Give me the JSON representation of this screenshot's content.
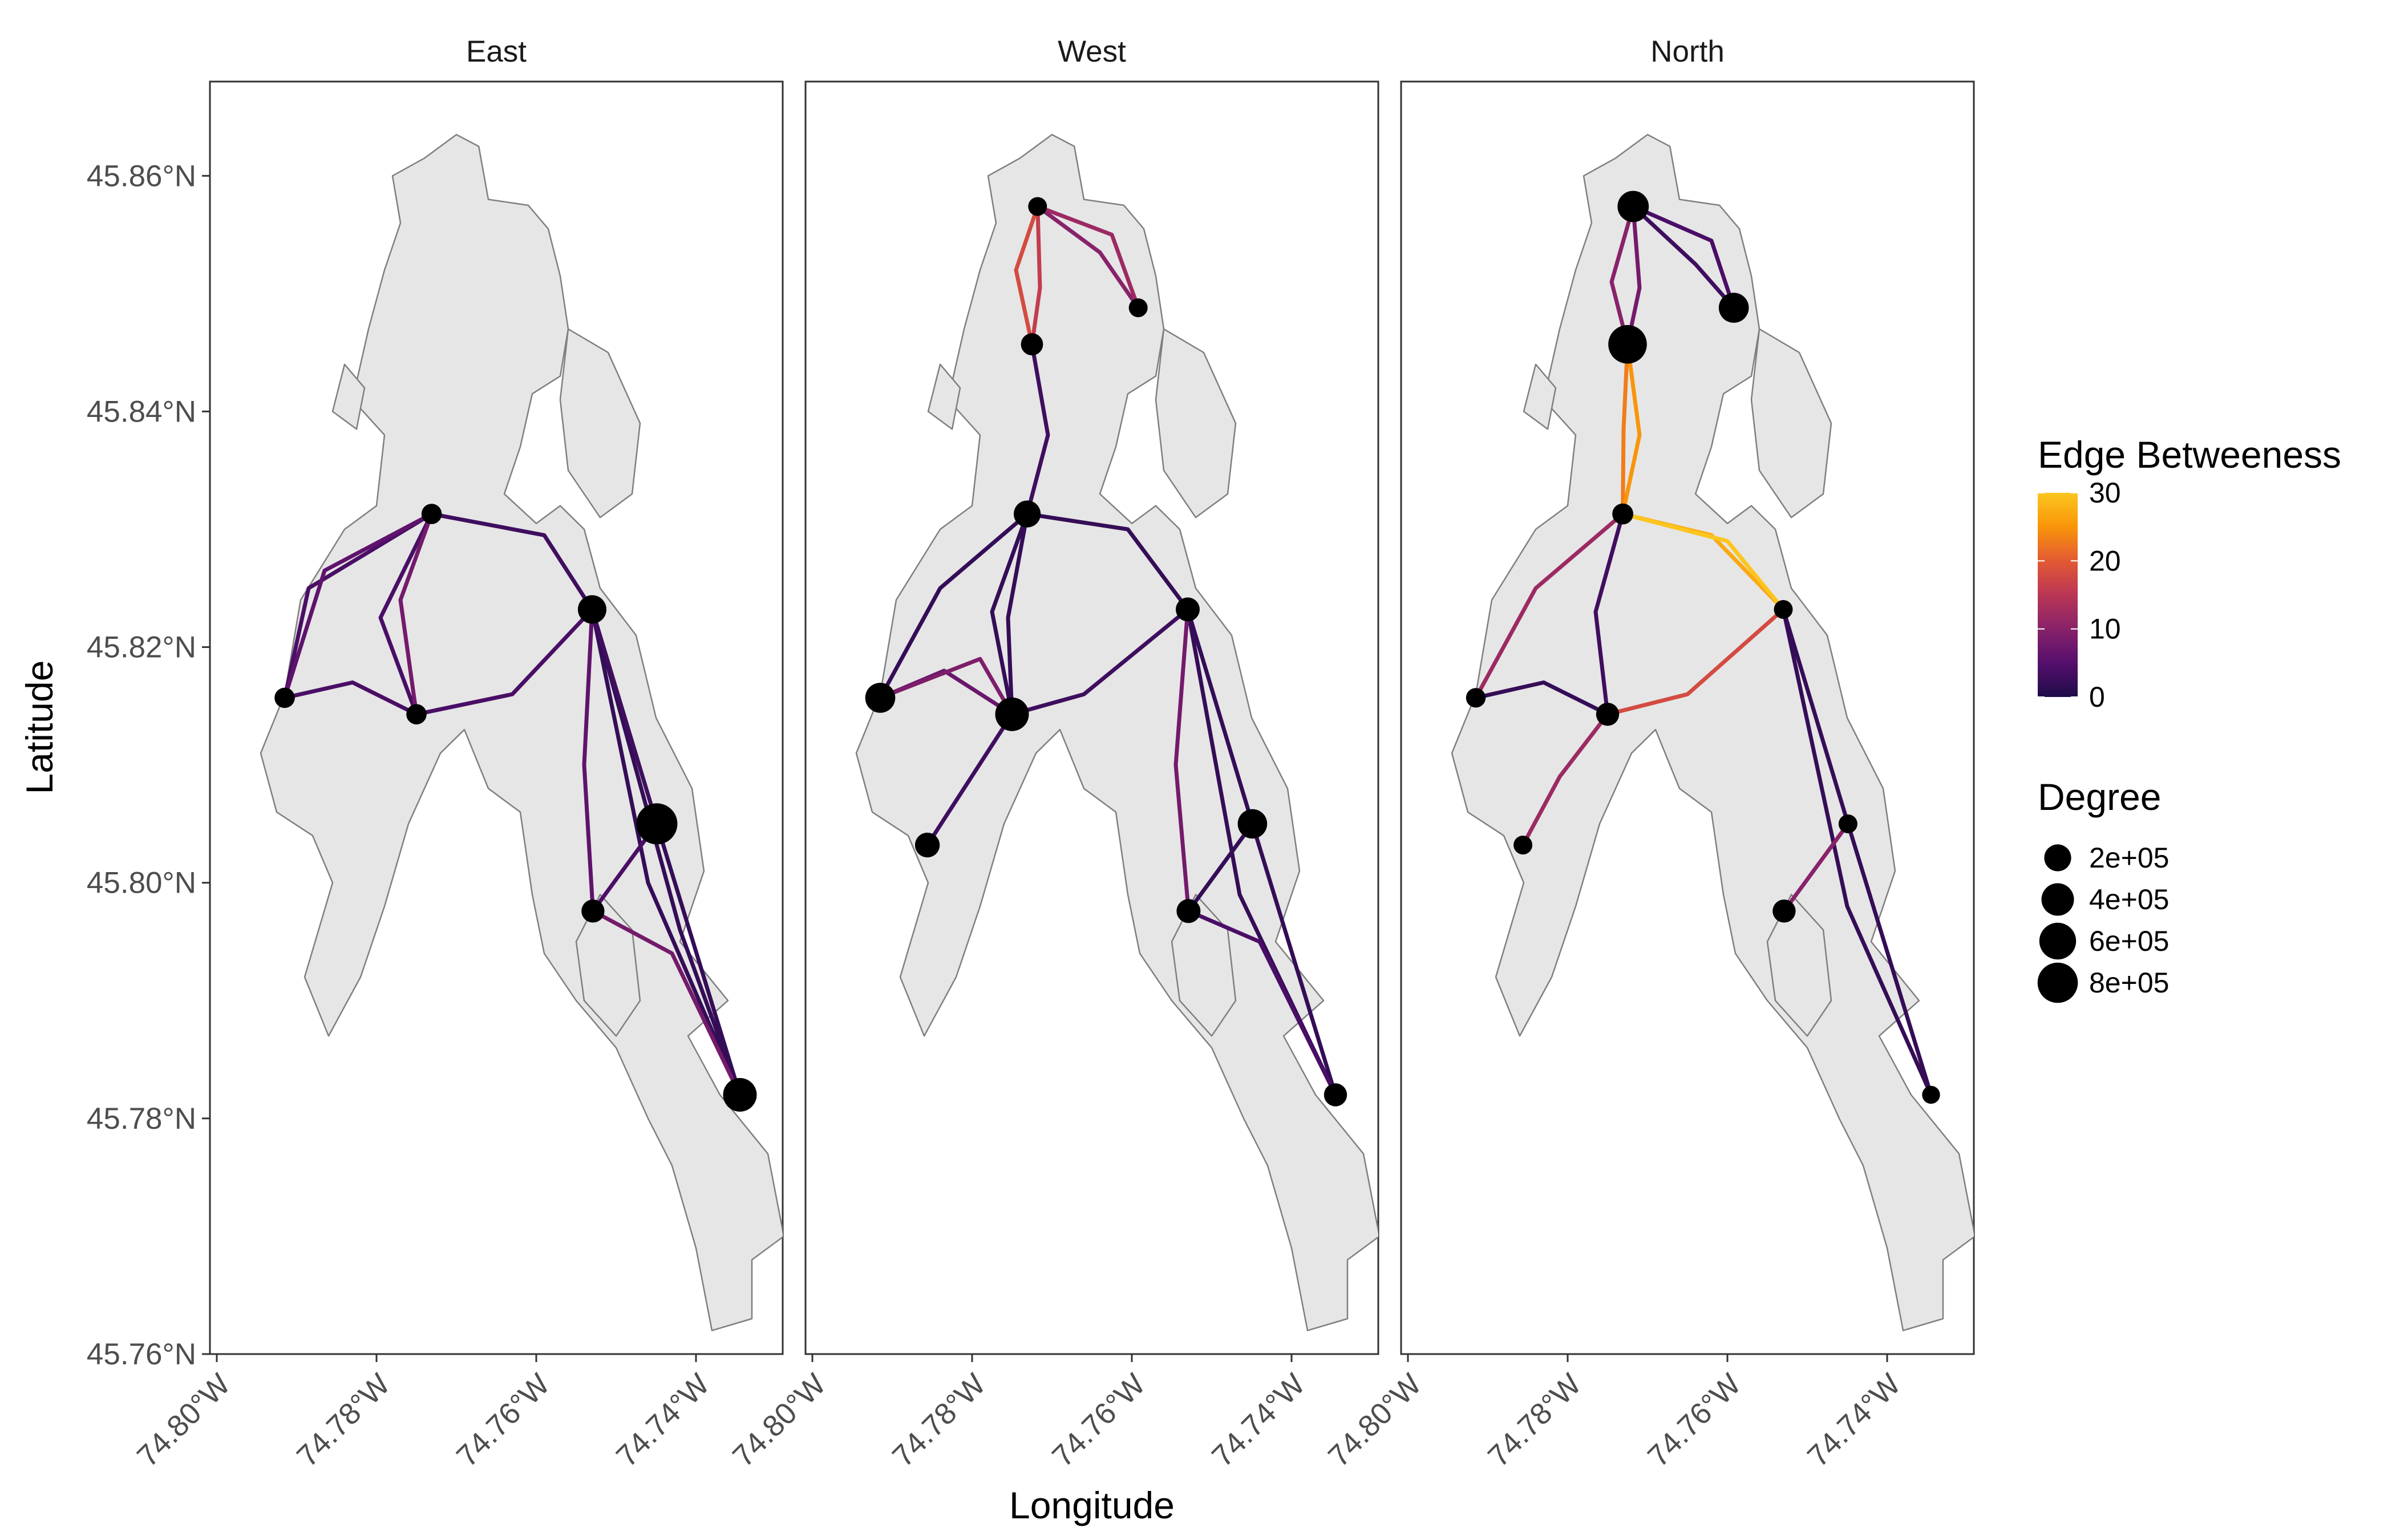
{
  "chart_data": {
    "type": "map",
    "xlabel": "Longitude",
    "ylabel": "Latitude",
    "xlim": [
      -74.8,
      -74.73
    ],
    "ylim": [
      45.76,
      45.868
    ],
    "x_ticks": [
      {
        "value": -74.8,
        "label": "74.80°W"
      },
      {
        "value": -74.78,
        "label": "74.78°W"
      },
      {
        "value": -74.76,
        "label": "74.76°W"
      },
      {
        "value": -74.74,
        "label": "74.74°W"
      }
    ],
    "y_ticks": [
      {
        "value": 45.76,
        "label": "45.76°N"
      },
      {
        "value": 45.78,
        "label": "45.78°N"
      },
      {
        "value": 45.8,
        "label": "45.80°N"
      },
      {
        "value": 45.82,
        "label": "45.82°N"
      },
      {
        "value": 45.84,
        "label": "45.84°N"
      },
      {
        "value": 45.86,
        "label": "45.86°N"
      }
    ],
    "grid": false,
    "land_color": "#e6e6e6",
    "land_outline_color": "#7f7f7f",
    "legend_placement": "right",
    "edge_legend": {
      "title": "Edge Betweeness",
      "scale": "inferno",
      "min": 0,
      "max": 30,
      "breaks": [
        {
          "value": 0,
          "label": "0"
        },
        {
          "value": 10,
          "label": "10"
        },
        {
          "value": 20,
          "label": "20"
        },
        {
          "value": 30,
          "label": "30"
        }
      ],
      "colors": [
        "#1f0c48",
        "#550f6d",
        "#88226a",
        "#ba3655",
        "#e35933",
        "#f9950a",
        "#fcc61f"
      ]
    },
    "size_legend": {
      "title": "Degree",
      "breaks": [
        {
          "value": 200000,
          "label": "2e+05"
        },
        {
          "value": 400000,
          "label": "4e+05"
        },
        {
          "value": 600000,
          "label": "6e+05"
        },
        {
          "value": 800000,
          "label": "8e+05"
        }
      ]
    },
    "nodes": [
      {
        "id": "A",
        "lon": -74.7718,
        "lat": 45.8574
      },
      {
        "id": "B",
        "lon": -74.7592,
        "lat": 45.8488
      },
      {
        "id": "C",
        "lon": -74.7725,
        "lat": 45.8457
      },
      {
        "id": "D",
        "lon": -74.7731,
        "lat": 45.8313
      },
      {
        "id": "E",
        "lon": -74.753,
        "lat": 45.8232
      },
      {
        "id": "F",
        "lon": -74.7915,
        "lat": 45.8157
      },
      {
        "id": "G",
        "lon": -74.775,
        "lat": 45.8143
      },
      {
        "id": "H",
        "lon": -74.7449,
        "lat": 45.805
      },
      {
        "id": "I",
        "lon": -74.7856,
        "lat": 45.8032
      },
      {
        "id": "J",
        "lon": -74.7529,
        "lat": 45.7976
      },
      {
        "id": "K",
        "lon": -74.7345,
        "lat": 45.782
      }
    ],
    "panels": [
      {
        "name": "East",
        "nodes": [
          {
            "id": "D",
            "degree": 50000
          },
          {
            "id": "E",
            "degree": 250000
          },
          {
            "id": "F",
            "degree": 50000
          },
          {
            "id": "G",
            "degree": 50000
          },
          {
            "id": "H",
            "degree": 850000
          },
          {
            "id": "J",
            "degree": 100000
          },
          {
            "id": "K",
            "degree": 450000
          }
        ],
        "edges": [
          {
            "from": "F",
            "to": "D",
            "betweenness": 6,
            "via": [
              [
                -74.7865,
                45.8265
              ]
            ]
          },
          {
            "from": "F",
            "to": "D",
            "betweenness": 4,
            "via": [
              [
                -74.7885,
                45.825
              ]
            ]
          },
          {
            "from": "F",
            "to": "G",
            "betweenness": 4,
            "via": [
              [
                -74.783,
                45.817
              ]
            ]
          },
          {
            "from": "G",
            "to": "D",
            "betweenness": 8,
            "via": [
              [
                -74.777,
                45.824
              ]
            ]
          },
          {
            "from": "G",
            "to": "D",
            "betweenness": 4,
            "via": [
              [
                -74.7795,
                45.8225
              ]
            ]
          },
          {
            "from": "D",
            "to": "E",
            "betweenness": 3,
            "via": [
              [
                -74.759,
                45.8295
              ]
            ]
          },
          {
            "from": "G",
            "to": "E",
            "betweenness": 4,
            "via": [
              [
                -74.763,
                45.816
              ]
            ]
          },
          {
            "from": "E",
            "to": "H",
            "betweenness": 3,
            "via": []
          },
          {
            "from": "E",
            "to": "K",
            "betweenness": 2,
            "via": [
              [
                -74.742,
                45.796
              ]
            ]
          },
          {
            "from": "E",
            "to": "K",
            "betweenness": 2,
            "via": [
              [
                -74.746,
                45.8
              ]
            ]
          },
          {
            "from": "E",
            "to": "J",
            "betweenness": 6,
            "via": [
              [
                -74.754,
                45.81
              ]
            ]
          },
          {
            "from": "H",
            "to": "K",
            "betweenness": 2,
            "via": []
          },
          {
            "from": "H",
            "to": "J",
            "betweenness": 4,
            "via": []
          },
          {
            "from": "J",
            "to": "K",
            "betweenness": 8,
            "via": [
              [
                -74.743,
                45.794
              ]
            ]
          }
        ]
      },
      {
        "name": "West",
        "nodes": [
          {
            "id": "A",
            "degree": 30000
          },
          {
            "id": "B",
            "degree": 30000
          },
          {
            "id": "C",
            "degree": 80000
          },
          {
            "id": "D",
            "degree": 200000
          },
          {
            "id": "E",
            "degree": 120000
          },
          {
            "id": "F",
            "degree": 300000
          },
          {
            "id": "G",
            "degree": 450000
          },
          {
            "id": "H",
            "degree": 280000
          },
          {
            "id": "I",
            "degree": 140000
          },
          {
            "id": "J",
            "degree": 120000
          },
          {
            "id": "K",
            "degree": 100000
          }
        ],
        "edges": [
          {
            "from": "A",
            "to": "C",
            "betweenness": 18,
            "via": [
              [
                -74.7745,
                45.852
              ]
            ]
          },
          {
            "from": "A",
            "to": "C",
            "betweenness": 16,
            "via": [
              [
                -74.7715,
                45.8505
              ]
            ]
          },
          {
            "from": "A",
            "to": "B",
            "betweenness": 12,
            "via": [
              [
                -74.7625,
                45.855
              ]
            ]
          },
          {
            "from": "A",
            "to": "B",
            "betweenness": 10,
            "via": [
              [
                -74.764,
                45.8535
              ]
            ]
          },
          {
            "from": "C",
            "to": "D",
            "betweenness": 3,
            "via": [
              [
                -74.7705,
                45.838
              ]
            ]
          },
          {
            "from": "D",
            "to": "F",
            "betweenness": 2,
            "via": [
              [
                -74.784,
                45.825
              ]
            ]
          },
          {
            "from": "D",
            "to": "G",
            "betweenness": 2,
            "via": [
              [
                -74.7755,
                45.8225
              ]
            ]
          },
          {
            "from": "D",
            "to": "G",
            "betweenness": 2,
            "via": [
              [
                -74.7775,
                45.823
              ]
            ]
          },
          {
            "from": "D",
            "to": "E",
            "betweenness": 2,
            "via": [
              [
                -74.7605,
                45.83
              ]
            ]
          },
          {
            "from": "F",
            "to": "G",
            "betweenness": 7,
            "via": [
              [
                -74.7835,
                45.818
              ]
            ]
          },
          {
            "from": "F",
            "to": "G",
            "betweenness": 9,
            "via": [
              [
                -74.779,
                45.819
              ]
            ]
          },
          {
            "from": "G",
            "to": "E",
            "betweenness": 3,
            "via": [
              [
                -74.766,
                45.816
              ]
            ]
          },
          {
            "from": "G",
            "to": "I",
            "betweenness": 3,
            "via": []
          },
          {
            "from": "E",
            "to": "H",
            "betweenness": 2,
            "via": []
          },
          {
            "from": "E",
            "to": "K",
            "betweenness": 2,
            "via": [
              [
                -74.7465,
                45.799
              ]
            ]
          },
          {
            "from": "E",
            "to": "J",
            "betweenness": 8,
            "via": [
              [
                -74.7545,
                45.81
              ]
            ]
          },
          {
            "from": "H",
            "to": "J",
            "betweenness": 2,
            "via": []
          },
          {
            "from": "J",
            "to": "K",
            "betweenness": 4,
            "via": [
              [
                -74.744,
                45.795
              ]
            ]
          },
          {
            "from": "H",
            "to": "K",
            "betweenness": 2,
            "via": []
          }
        ]
      },
      {
        "name": "North",
        "nodes": [
          {
            "id": "A",
            "degree": 350000
          },
          {
            "id": "B",
            "degree": 300000
          },
          {
            "id": "C",
            "degree": 700000
          },
          {
            "id": "D",
            "degree": 60000
          },
          {
            "id": "E",
            "degree": 30000
          },
          {
            "id": "F",
            "degree": 40000
          },
          {
            "id": "G",
            "degree": 100000
          },
          {
            "id": "H",
            "degree": 30000
          },
          {
            "id": "I",
            "degree": 30000
          },
          {
            "id": "J",
            "degree": 100000
          },
          {
            "id": "K",
            "degree": 20000
          }
        ],
        "edges": [
          {
            "from": "A",
            "to": "C",
            "betweenness": 10,
            "via": [
              [
                -74.7745,
                45.851
              ]
            ]
          },
          {
            "from": "A",
            "to": "C",
            "betweenness": 8,
            "via": [
              [
                -74.771,
                45.8505
              ]
            ]
          },
          {
            "from": "A",
            "to": "B",
            "betweenness": 4,
            "via": [
              [
                -74.762,
                45.8545
              ]
            ]
          },
          {
            "from": "A",
            "to": "B",
            "betweenness": 3,
            "via": [
              [
                -74.764,
                45.8525
              ]
            ]
          },
          {
            "from": "C",
            "to": "D",
            "betweenness": 25,
            "via": [
              [
                -74.771,
                45.838
              ]
            ]
          },
          {
            "from": "C",
            "to": "D",
            "betweenness": 23,
            "via": [
              [
                -74.773,
                45.8385
              ]
            ]
          },
          {
            "from": "D",
            "to": "E",
            "betweenness": 30,
            "via": [
              [
                -74.76,
                45.829
              ]
            ]
          },
          {
            "from": "D",
            "to": "E",
            "betweenness": 27,
            "via": [
              [
                -74.762,
                45.8295
              ]
            ]
          },
          {
            "from": "D",
            "to": "F",
            "betweenness": 12,
            "via": [
              [
                -74.784,
                45.825
              ]
            ]
          },
          {
            "from": "D",
            "to": "G",
            "betweenness": 3,
            "via": [
              [
                -74.7765,
                45.823
              ]
            ]
          },
          {
            "from": "F",
            "to": "G",
            "betweenness": 2,
            "via": [
              [
                -74.783,
                45.817
              ]
            ]
          },
          {
            "from": "G",
            "to": "I",
            "betweenness": 12,
            "via": [
              [
                -74.781,
                45.809
              ]
            ]
          },
          {
            "from": "G",
            "to": "E",
            "betweenness": 18,
            "via": [
              [
                -74.765,
                45.816
              ]
            ]
          },
          {
            "from": "E",
            "to": "H",
            "betweenness": 2,
            "via": []
          },
          {
            "from": "H",
            "to": "J",
            "betweenness": 10,
            "via": []
          },
          {
            "from": "H",
            "to": "K",
            "betweenness": 2,
            "via": []
          },
          {
            "from": "E",
            "to": "K",
            "betweenness": 2,
            "via": [
              [
                -74.745,
                45.798
              ]
            ]
          }
        ]
      }
    ]
  }
}
